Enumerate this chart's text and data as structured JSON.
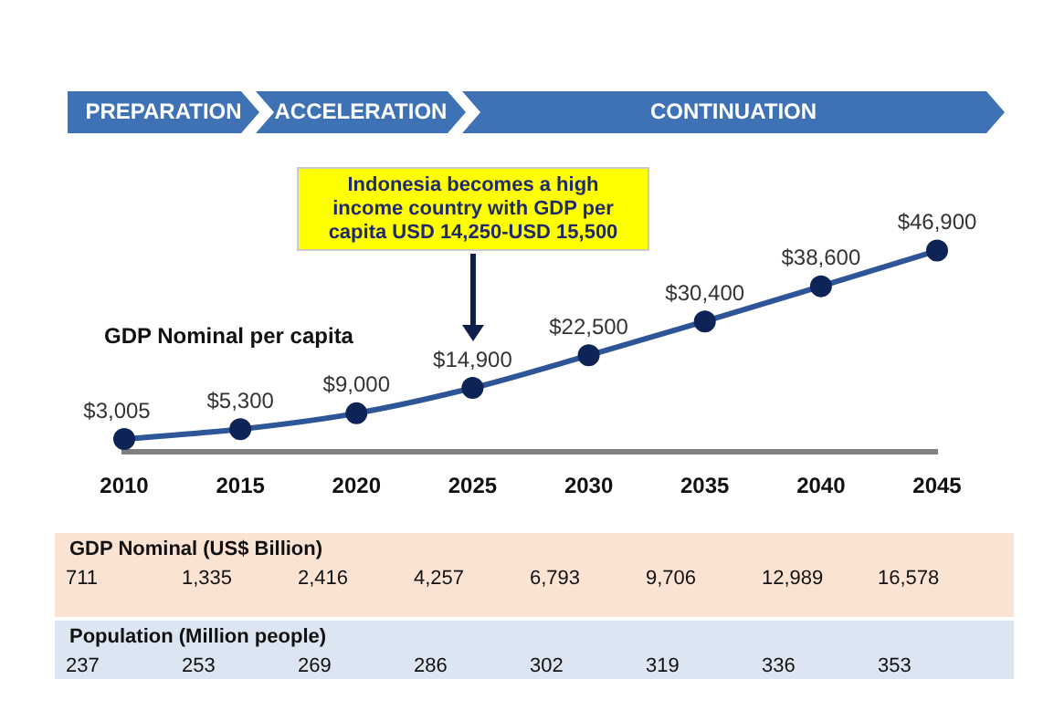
{
  "chart_data": [
    {
      "type": "line",
      "ylabel": "GDP Nominal per capita",
      "categories": [
        "2010",
        "2015",
        "2020",
        "2025",
        "2030",
        "2035",
        "2040",
        "2045"
      ],
      "values": [
        3005,
        5300,
        9000,
        14900,
        22500,
        30400,
        38600,
        46900
      ],
      "value_labels": [
        "$3,005",
        "$5,300",
        "$9,000",
        "$14,900",
        "$22,500",
        "$30,400",
        "$38,600",
        "$46,900"
      ],
      "color": "#2e5597",
      "marker": "circle",
      "grid": false,
      "annotations": [
        "PREPARATION",
        "ACCELERATION",
        "CONTINUATION",
        "Indonesia becomes a high income country with GDP per capita USD 14,250-USD 15,500"
      ]
    },
    {
      "type": "other",
      "title": "GDP Nominal (US$ Billion)",
      "values": [
        711,
        1335,
        2416,
        4257,
        6793,
        9706,
        12989,
        16578
      ],
      "value_labels": [
        "711",
        "1,335",
        "2,416",
        "4,257",
        "6,793",
        "9,706",
        "12,989",
        "16,578"
      ]
    },
    {
      "type": "other",
      "title": "Population (Million people)",
      "values": [
        237,
        253,
        269,
        286,
        302,
        319,
        336,
        353
      ],
      "value_labels": [
        "237",
        "253",
        "269",
        "286",
        "302",
        "319",
        "336",
        "353"
      ]
    }
  ]
}
